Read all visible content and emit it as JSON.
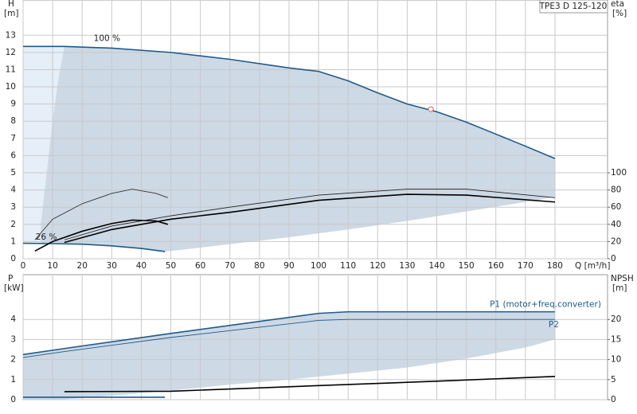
{
  "chart_data": [
    {
      "type": "line",
      "title": "TPE3 D 125-120",
      "ylabel": "H",
      "yunit": "[m]",
      "y2label": "eta",
      "y2unit": "[%]",
      "xlabel": "Q [m³/h]",
      "xlim": [
        0,
        197.8
      ],
      "ylim": [
        0,
        15.05
      ],
      "y2lim": [
        0,
        301
      ],
      "xticks": [
        0,
        10,
        20,
        30,
        40,
        50,
        60,
        70,
        80,
        90,
        100,
        110,
        120,
        130,
        140,
        150,
        160,
        170,
        180
      ],
      "yticks": [
        0,
        1,
        2,
        3,
        4,
        5,
        6,
        7,
        8,
        9,
        10,
        11,
        12,
        13
      ],
      "y2ticks": [
        0,
        20,
        40,
        60,
        80,
        100
      ],
      "grid": true,
      "xtick_labels": true,
      "series": [
        {
          "label": "100 %",
          "color": "#1f5a8a",
          "x": [
            0,
            14,
            30,
            50,
            70,
            90,
            100,
            110,
            120,
            130,
            140,
            150,
            160,
            170,
            180
          ],
          "values": [
            12.35,
            12.35,
            12.25,
            12.0,
            11.6,
            11.1,
            10.9,
            10.35,
            9.65,
            9.0,
            8.55,
            7.95,
            7.25,
            6.55,
            5.83
          ]
        },
        {
          "label": "26 %",
          "color": "#1f5a8a",
          "x": [
            0,
            10,
            20,
            30,
            40,
            48
          ],
          "values": [
            0.9,
            0.88,
            0.85,
            0.75,
            0.6,
            0.42
          ]
        },
        {
          "axis": "y2",
          "color": "#333333",
          "x": [
            4,
            10,
            20,
            30,
            37,
            45,
            49
          ],
          "values": [
            22,
            46,
            64,
            76,
            81,
            76,
            71
          ]
        },
        {
          "axis": "y2",
          "color": "#000000",
          "x": [
            4,
            10,
            20,
            30,
            37,
            45,
            49
          ],
          "values": [
            9,
            20,
            32,
            41,
            45,
            44,
            40
          ]
        },
        {
          "axis": "y2",
          "color": "#222222",
          "x": [
            14,
            30,
            50,
            70,
            100,
            130,
            150,
            180
          ],
          "values": [
            22,
            38,
            50,
            60,
            74,
            81,
            81,
            71
          ]
        },
        {
          "axis": "y2",
          "color": "#000000",
          "x": [
            14,
            30,
            50,
            70,
            100,
            130,
            150,
            180
          ],
          "values": [
            19,
            34,
            46,
            54,
            68,
            75,
            74,
            66
          ]
        }
      ],
      "area": {
        "color": "#cdd9e5",
        "x": [
          180,
          170,
          150,
          130,
          110,
          90,
          70,
          50,
          48,
          40,
          30,
          20,
          6,
          6,
          8,
          10,
          12,
          14
        ],
        "values": [
          3.6,
          3.3,
          2.75,
          2.2,
          1.7,
          1.25,
          0.85,
          0.45,
          0.42,
          0.6,
          0.75,
          0.85,
          0.89,
          2,
          5,
          8,
          10.5,
          12.35
        ]
      },
      "duty_point": {
        "x": 138,
        "y": 8.7,
        "color": "#e06060"
      }
    },
    {
      "type": "line",
      "ylabel": "P",
      "yunit": "[kW]",
      "y2label": "NPSH",
      "y2unit": "[m]",
      "xlim": [
        0,
        197.8
      ],
      "ylim": [
        0,
        6.23
      ],
      "y2lim": [
        0,
        31.15
      ],
      "xticks": [
        0,
        10,
        20,
        30,
        40,
        50,
        60,
        70,
        80,
        90,
        100,
        110,
        120,
        130,
        140,
        150,
        160,
        170,
        180
      ],
      "yticks": [
        0,
        1,
        2,
        3,
        4
      ],
      "y2ticks": [
        0,
        5,
        10,
        15,
        20
      ],
      "grid": true,
      "xtick_labels": false,
      "series": [
        {
          "label": "P1 (motor+freq.converter)",
          "color": "#1f5a8a",
          "x": [
            0,
            14,
            50,
            100,
            110,
            180
          ],
          "values": [
            2.25,
            2.55,
            3.3,
            4.3,
            4.38,
            4.38
          ]
        },
        {
          "label": "P2",
          "color": "#1f5a8a",
          "x": [
            0,
            14,
            50,
            100,
            110,
            180
          ],
          "values": [
            2.1,
            2.4,
            3.1,
            3.95,
            4.0,
            4.0
          ]
        },
        {
          "axis": "y2",
          "color": "#000000",
          "x": [
            14,
            50,
            100,
            140,
            180
          ],
          "values": [
            2.0,
            2.1,
            3.5,
            4.6,
            5.8
          ]
        },
        {
          "color": "#1f5a8a",
          "x": [
            0,
            48
          ],
          "values": [
            0.12,
            0.12
          ]
        }
      ],
      "area": {
        "color": "#cdd9e5",
        "x": [
          180,
          170,
          150,
          130,
          110,
          90,
          70,
          50,
          30,
          20,
          12,
          8,
          0
        ],
        "values": [
          3.0,
          2.6,
          2.05,
          1.6,
          1.3,
          1.0,
          0.75,
          0.45,
          0.2,
          0.08,
          0,
          0,
          0
        ]
      }
    }
  ]
}
